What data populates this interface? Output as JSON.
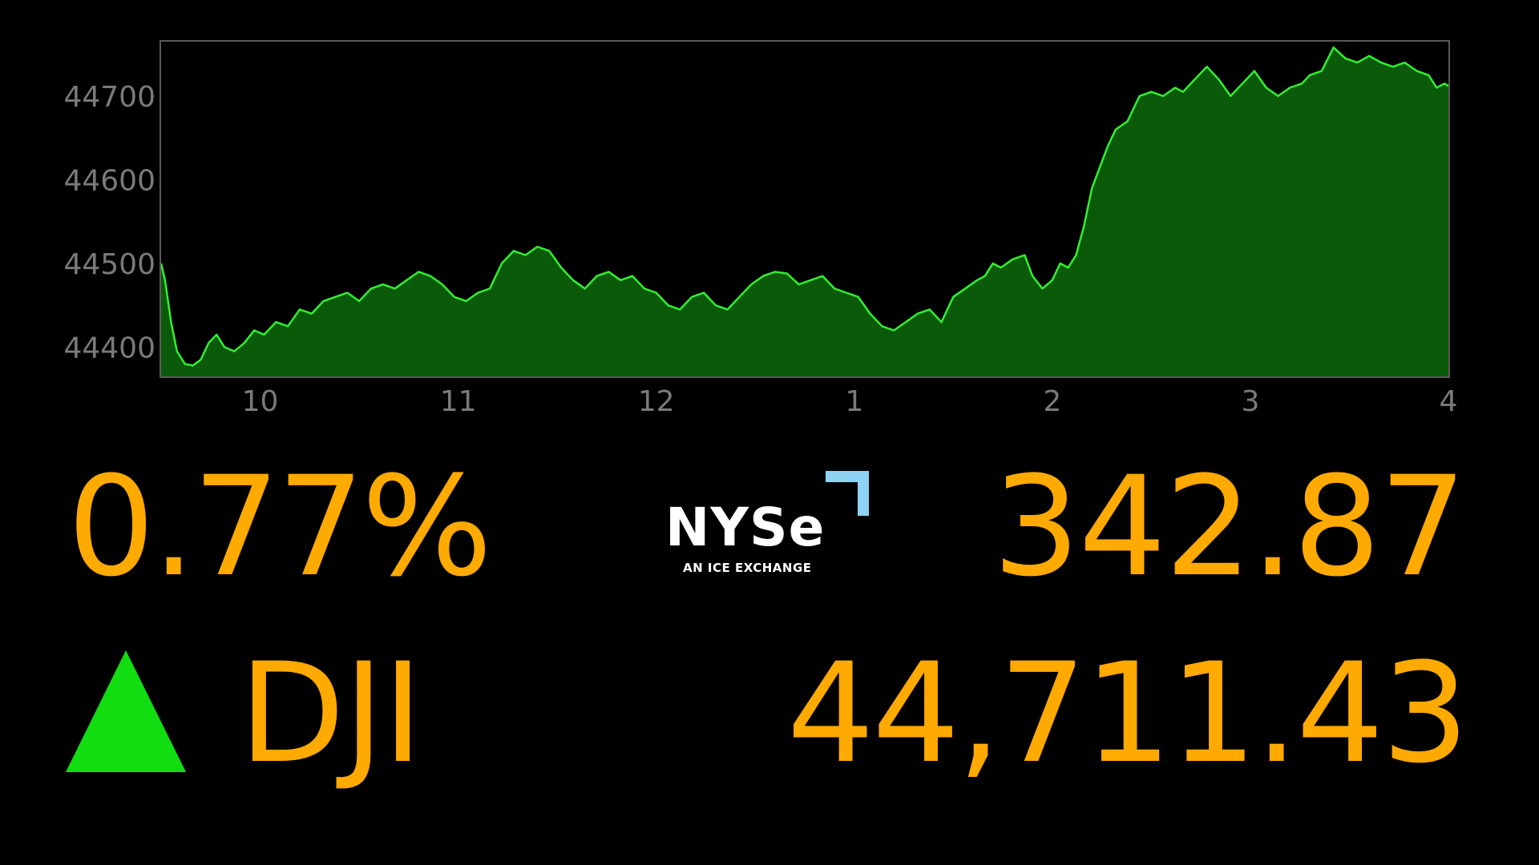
{
  "chart_data": {
    "type": "area",
    "title": "",
    "xlabel": "",
    "ylabel": "",
    "x_ticks": [
      "10",
      "11",
      "12",
      "1",
      "2",
      "3",
      "4"
    ],
    "y_ticks": [
      "44700",
      "44600",
      "44500",
      "44400"
    ],
    "ylim": [
      44365,
      44765
    ],
    "xlim": [
      9.5,
      16.0
    ],
    "grid": false,
    "legend": "none",
    "line_color": "#33EE33",
    "fill_color": "#0A5A0A",
    "series": [
      {
        "x": [
          9.5,
          9.52,
          9.55,
          9.58,
          9.62,
          9.66,
          9.7,
          9.74,
          9.78,
          9.82,
          9.87,
          9.92,
          9.97,
          10.02,
          10.08,
          10.14,
          10.2,
          10.26,
          10.32,
          10.38,
          10.44,
          10.5,
          10.56,
          10.62,
          10.68,
          10.74,
          10.8,
          10.86,
          10.92,
          10.98,
          11.04,
          11.1,
          11.16,
          11.22,
          11.28,
          11.34,
          11.4,
          11.46,
          11.52,
          11.58,
          11.64,
          11.7,
          11.76,
          11.82,
          11.88,
          11.94,
          12.0,
          12.06,
          12.12,
          12.18,
          12.24,
          12.3,
          12.36,
          12.42,
          12.48,
          12.54,
          12.6,
          12.66,
          12.72,
          12.78,
          12.84,
          12.9,
          12.96,
          13.02,
          13.08,
          13.14,
          13.2,
          13.26,
          13.32,
          13.38,
          13.44,
          13.5,
          13.56,
          13.62,
          13.66,
          13.7,
          13.74,
          13.8,
          13.86,
          13.9,
          13.95,
          14.0,
          14.04,
          14.08,
          14.12,
          14.16,
          14.2,
          14.24,
          14.28,
          14.32,
          14.38,
          14.44,
          14.5,
          14.56,
          14.62,
          14.66,
          14.72,
          14.78,
          14.84,
          14.9,
          14.96,
          15.02,
          15.08,
          15.14,
          15.2,
          15.26,
          15.3,
          15.36,
          15.42,
          15.48,
          15.54,
          15.6,
          15.66,
          15.72,
          15.78,
          15.84,
          15.9,
          15.94,
          15.98,
          16.0
        ],
        "y": [
          44500,
          44480,
          44430,
          44395,
          44380,
          44378,
          44385,
          44405,
          44415,
          44400,
          44395,
          44405,
          44420,
          44415,
          44430,
          44425,
          44445,
          44440,
          44455,
          44460,
          44465,
          44455,
          44470,
          44475,
          44470,
          44480,
          44490,
          44485,
          44475,
          44460,
          44455,
          44465,
          44470,
          44500,
          44515,
          44510,
          44520,
          44515,
          44495,
          44480,
          44470,
          44485,
          44490,
          44480,
          44485,
          44470,
          44465,
          44450,
          44445,
          44460,
          44465,
          44450,
          44445,
          44460,
          44475,
          44485,
          44490,
          44488,
          44475,
          44480,
          44485,
          44470,
          44465,
          44460,
          44440,
          44425,
          44420,
          44430,
          44440,
          44445,
          44430,
          44460,
          44470,
          44480,
          44485,
          44500,
          44495,
          44505,
          44510,
          44485,
          44470,
          44480,
          44500,
          44495,
          44510,
          44545,
          44590,
          44615,
          44640,
          44660,
          44670,
          44700,
          44705,
          44700,
          44710,
          44705,
          44720,
          44735,
          44720,
          44700,
          44715,
          44730,
          44710,
          44700,
          44710,
          44715,
          44725,
          44730,
          44758,
          44745,
          44740,
          44748,
          44740,
          44735,
          44740,
          44730,
          44725,
          44710,
          44715,
          44712
        ]
      }
    ]
  },
  "stats": {
    "percent_change": "0.77%",
    "point_change": "342.87",
    "ticker": "DJI",
    "price": "44,711.43",
    "direction": "up"
  },
  "logo": {
    "wordmark": "NYSe",
    "tagline": "AN ICE EXCHANGE"
  },
  "colors": {
    "value_text": "#FFAA00",
    "up_arrow": "#11DD11",
    "logo_accent": "#8ED3F4",
    "axis_text": "#7A7A7A",
    "frame": "#5A5A5A"
  }
}
